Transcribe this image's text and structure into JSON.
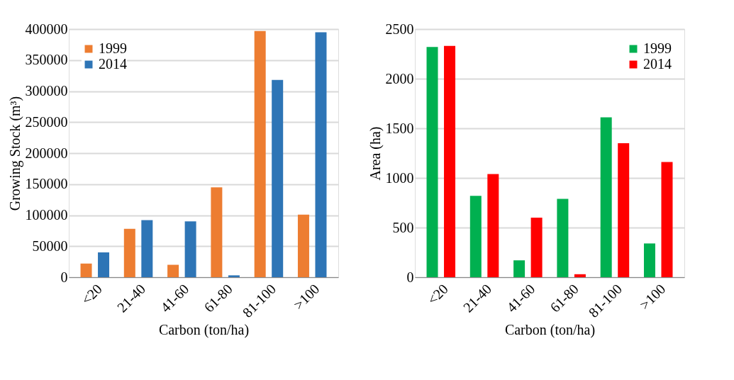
{
  "chart_data": [
    {
      "type": "bar",
      "xlabel": "Carbon (ton/ha)",
      "ylabel": "Growing Stock (m³)",
      "categories": [
        "<20",
        "21-40",
        "41-60",
        "61-80",
        "81-100",
        ">100"
      ],
      "series": [
        {
          "name": "1999",
          "color": "#ed7d31",
          "values": [
            22000,
            78000,
            20000,
            145000,
            397000,
            101000
          ]
        },
        {
          "name": "2014",
          "color": "#2e75b6",
          "values": [
            40000,
            92000,
            90000,
            3000,
            318000,
            395000
          ]
        }
      ],
      "ylim": [
        0,
        400000
      ],
      "yticks": [
        0,
        50000,
        100000,
        150000,
        200000,
        250000,
        300000,
        350000,
        400000
      ],
      "grid": "y",
      "legend": "top left"
    },
    {
      "type": "bar",
      "xlabel": "Carbon (ton/ha)",
      "ylabel": "Area (ha)",
      "categories": [
        "<20",
        "21-40",
        "41-60",
        "61-80",
        "81-100",
        ">100"
      ],
      "series": [
        {
          "name": "1999",
          "color": "#00b050",
          "values": [
            2320,
            820,
            170,
            790,
            1610,
            340
          ]
        },
        {
          "name": "2014",
          "color": "#ff0000",
          "values": [
            2330,
            1040,
            600,
            30,
            1350,
            1160
          ]
        }
      ],
      "ylim": [
        0,
        2500
      ],
      "yticks": [
        0,
        500,
        1000,
        1500,
        2000,
        2500
      ],
      "grid": "y",
      "legend": "top right"
    }
  ]
}
